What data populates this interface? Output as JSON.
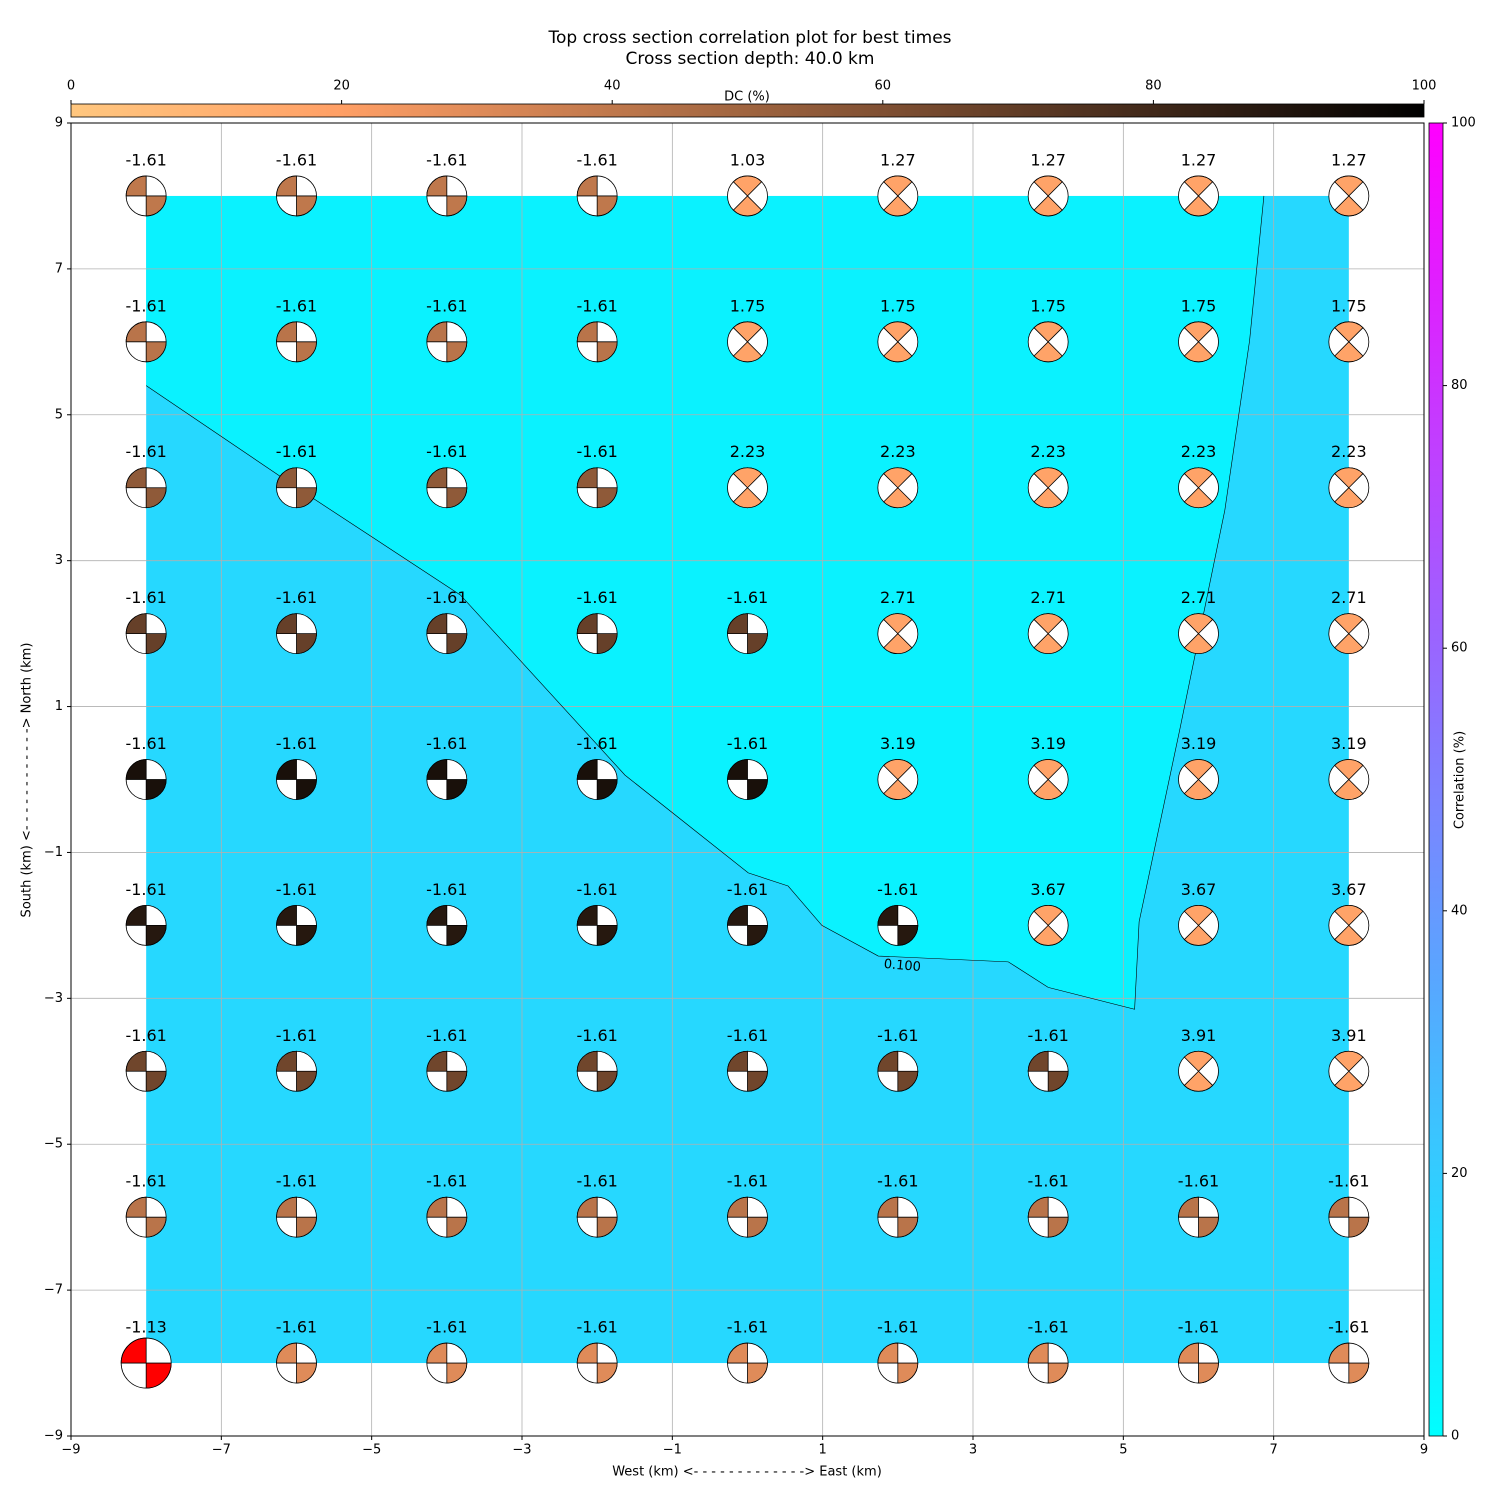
{
  "chart_data": {
    "type": "beachball",
    "title": "Top cross section correlation plot for best times",
    "subtitle": "Cross section depth: 40.0 km",
    "xlabel": "West (km) <- - - - - - - - - - - - -> East (km)",
    "ylabel": "South (km) <- - - - - - - - - - - -> North (km)",
    "xlim": [
      -9,
      9
    ],
    "ylim": [
      -9,
      9
    ],
    "xticks": [
      {
        "value": -9,
        "label": "−9"
      },
      {
        "value": -7,
        "label": "−7"
      },
      {
        "value": -5,
        "label": "−5"
      },
      {
        "value": -3,
        "label": "−3"
      },
      {
        "value": -1,
        "label": "−1"
      },
      1,
      3,
      5,
      7,
      9
    ],
    "yticks": [
      {
        "value": -9,
        "label": "−9"
      },
      {
        "value": -7,
        "label": "−7"
      },
      {
        "value": -5,
        "label": "−5"
      },
      {
        "value": -3,
        "label": "−3"
      },
      {
        "value": -1,
        "label": "−1"
      },
      1,
      3,
      5,
      7,
      9
    ],
    "grid": true,
    "fill": {
      "xlim": [
        -8,
        8
      ],
      "ylim": [
        -8,
        8
      ],
      "color": "#26d8ff",
      "inner_color": "#0af2ff"
    },
    "contour": {
      "label": "0.100",
      "x": [
        -8,
        -5.95,
        -3.82,
        -1.63,
        0.01,
        0.54,
        0.99,
        1.74,
        3.47,
        4.0,
        5.15,
        5.21,
        5.75,
        6.35,
        6.68,
        6.87
      ],
      "y": [
        5.4,
        3.97,
        2.53,
        0.06,
        -1.28,
        -1.46,
        -2.0,
        -2.42,
        -2.5,
        -2.85,
        -3.15,
        -1.95,
        0.68,
        3.69,
        6.02,
        8.0
      ]
    },
    "dc_colorbar": {
      "label": "DC (%)",
      "lim": [
        0,
        100
      ],
      "ticks": [
        0,
        20,
        40,
        60,
        80,
        100
      ],
      "colormap": "copper_r"
    },
    "corr_colorbar": {
      "label": "Correlation (%)",
      "lim": [
        0,
        100
      ],
      "ticks": [
        0,
        20,
        40,
        60,
        80,
        100
      ],
      "colormap": "cool"
    },
    "highlight": {
      "index": 72,
      "color": "#ff0000"
    },
    "beachballs": [
      {
        "x": -8,
        "y": 8,
        "label": -1.61,
        "dc": 40
      },
      {
        "x": -6,
        "y": 8,
        "label": -1.61,
        "dc": 40
      },
      {
        "x": -4,
        "y": 8,
        "label": -1.61,
        "dc": 40
      },
      {
        "x": -2,
        "y": 8,
        "label": -1.61,
        "dc": 40
      },
      {
        "x": 0,
        "y": 8,
        "label": 1.03,
        "dc": 18
      },
      {
        "x": 2,
        "y": 8,
        "label": 1.27,
        "dc": 18
      },
      {
        "x": 4,
        "y": 8,
        "label": 1.27,
        "dc": 18
      },
      {
        "x": 6,
        "y": 8,
        "label": 1.27,
        "dc": 18
      },
      {
        "x": 8,
        "y": 8,
        "label": 1.27,
        "dc": 18
      },
      {
        "x": -8,
        "y": 6,
        "label": -1.61,
        "dc": 42
      },
      {
        "x": -6,
        "y": 6,
        "label": -1.61,
        "dc": 42
      },
      {
        "x": -4,
        "y": 6,
        "label": -1.61,
        "dc": 42
      },
      {
        "x": -2,
        "y": 6,
        "label": -1.61,
        "dc": 42
      },
      {
        "x": 0,
        "y": 6,
        "label": 1.75,
        "dc": 18
      },
      {
        "x": 2,
        "y": 6,
        "label": 1.75,
        "dc": 18
      },
      {
        "x": 4,
        "y": 6,
        "label": 1.75,
        "dc": 18
      },
      {
        "x": 6,
        "y": 6,
        "label": 1.75,
        "dc": 18
      },
      {
        "x": 8,
        "y": 6,
        "label": 1.75,
        "dc": 18
      },
      {
        "x": -8,
        "y": 4,
        "label": -1.61,
        "dc": 55
      },
      {
        "x": -6,
        "y": 4,
        "label": -1.61,
        "dc": 55
      },
      {
        "x": -4,
        "y": 4,
        "label": -1.61,
        "dc": 55
      },
      {
        "x": -2,
        "y": 4,
        "label": -1.61,
        "dc": 55
      },
      {
        "x": 0,
        "y": 4,
        "label": 2.23,
        "dc": 18
      },
      {
        "x": 2,
        "y": 4,
        "label": 2.23,
        "dc": 18
      },
      {
        "x": 4,
        "y": 4,
        "label": 2.23,
        "dc": 18
      },
      {
        "x": 6,
        "y": 4,
        "label": 2.23,
        "dc": 18
      },
      {
        "x": 8,
        "y": 4,
        "label": 2.23,
        "dc": 18
      },
      {
        "x": -8,
        "y": 2,
        "label": -1.61,
        "dc": 68
      },
      {
        "x": -6,
        "y": 2,
        "label": -1.61,
        "dc": 68
      },
      {
        "x": -4,
        "y": 2,
        "label": -1.61,
        "dc": 68
      },
      {
        "x": -2,
        "y": 2,
        "label": -1.61,
        "dc": 68
      },
      {
        "x": 0,
        "y": 2,
        "label": -1.61,
        "dc": 68
      },
      {
        "x": 2,
        "y": 2,
        "label": 2.71,
        "dc": 18
      },
      {
        "x": 4,
        "y": 2,
        "label": 2.71,
        "dc": 18
      },
      {
        "x": 6,
        "y": 2,
        "label": 2.71,
        "dc": 18
      },
      {
        "x": 8,
        "y": 2,
        "label": 2.71,
        "dc": 18
      },
      {
        "x": -8,
        "y": 0,
        "label": -1.61,
        "dc": 92
      },
      {
        "x": -6,
        "y": 0,
        "label": -1.61,
        "dc": 92
      },
      {
        "x": -4,
        "y": 0,
        "label": -1.61,
        "dc": 92
      },
      {
        "x": -2,
        "y": 0,
        "label": -1.61,
        "dc": 92
      },
      {
        "x": 0,
        "y": 0,
        "label": -1.61,
        "dc": 92
      },
      {
        "x": 2,
        "y": 0,
        "label": 3.19,
        "dc": 18
      },
      {
        "x": 4,
        "y": 0,
        "label": 3.19,
        "dc": 18
      },
      {
        "x": 6,
        "y": 0,
        "label": 3.19,
        "dc": 18
      },
      {
        "x": 8,
        "y": 0,
        "label": 3.19,
        "dc": 18
      },
      {
        "x": -8,
        "y": -2,
        "label": -1.61,
        "dc": 88
      },
      {
        "x": -6,
        "y": -2,
        "label": -1.61,
        "dc": 88
      },
      {
        "x": -4,
        "y": -2,
        "label": -1.61,
        "dc": 88
      },
      {
        "x": -2,
        "y": -2,
        "label": -1.61,
        "dc": 88
      },
      {
        "x": 0,
        "y": -2,
        "label": -1.61,
        "dc": 88
      },
      {
        "x": 2,
        "y": -2,
        "label": -1.61,
        "dc": 88
      },
      {
        "x": 4,
        "y": -2,
        "label": 3.67,
        "dc": 18
      },
      {
        "x": 6,
        "y": -2,
        "label": 3.67,
        "dc": 18
      },
      {
        "x": 8,
        "y": -2,
        "label": 3.67,
        "dc": 18
      },
      {
        "x": -8,
        "y": -4,
        "label": -1.61,
        "dc": 65
      },
      {
        "x": -6,
        "y": -4,
        "label": -1.61,
        "dc": 65
      },
      {
        "x": -4,
        "y": -4,
        "label": -1.61,
        "dc": 65
      },
      {
        "x": -2,
        "y": -4,
        "label": -1.61,
        "dc": 65
      },
      {
        "x": 0,
        "y": -4,
        "label": -1.61,
        "dc": 65
      },
      {
        "x": 2,
        "y": -4,
        "label": -1.61,
        "dc": 65
      },
      {
        "x": 4,
        "y": -4,
        "label": -1.61,
        "dc": 65
      },
      {
        "x": 6,
        "y": -4,
        "label": 3.91,
        "dc": 18
      },
      {
        "x": 8,
        "y": -4,
        "label": 3.91,
        "dc": 18
      },
      {
        "x": -8,
        "y": -6,
        "label": -1.61,
        "dc": 42
      },
      {
        "x": -6,
        "y": -6,
        "label": -1.61,
        "dc": 42
      },
      {
        "x": -4,
        "y": -6,
        "label": -1.61,
        "dc": 42
      },
      {
        "x": -2,
        "y": -6,
        "label": -1.61,
        "dc": 42
      },
      {
        "x": 0,
        "y": -6,
        "label": -1.61,
        "dc": 42
      },
      {
        "x": 2,
        "y": -6,
        "label": -1.61,
        "dc": 42
      },
      {
        "x": 4,
        "y": -6,
        "label": -1.61,
        "dc": 42
      },
      {
        "x": 6,
        "y": -6,
        "label": -1.61,
        "dc": 42
      },
      {
        "x": 8,
        "y": -6,
        "label": -1.61,
        "dc": 42
      },
      {
        "x": -8,
        "y": -8,
        "label": -1.13,
        "dc": 30
      },
      {
        "x": -6,
        "y": -8,
        "label": -1.61,
        "dc": 30
      },
      {
        "x": -4,
        "y": -8,
        "label": -1.61,
        "dc": 30
      },
      {
        "x": -2,
        "y": -8,
        "label": -1.61,
        "dc": 30
      },
      {
        "x": 0,
        "y": -8,
        "label": -1.61,
        "dc": 30
      },
      {
        "x": 2,
        "y": -8,
        "label": -1.61,
        "dc": 30
      },
      {
        "x": 4,
        "y": -8,
        "label": -1.61,
        "dc": 30
      },
      {
        "x": 6,
        "y": -8,
        "label": -1.61,
        "dc": 30
      },
      {
        "x": 8,
        "y": -8,
        "label": -1.61,
        "dc": 30
      }
    ]
  }
}
